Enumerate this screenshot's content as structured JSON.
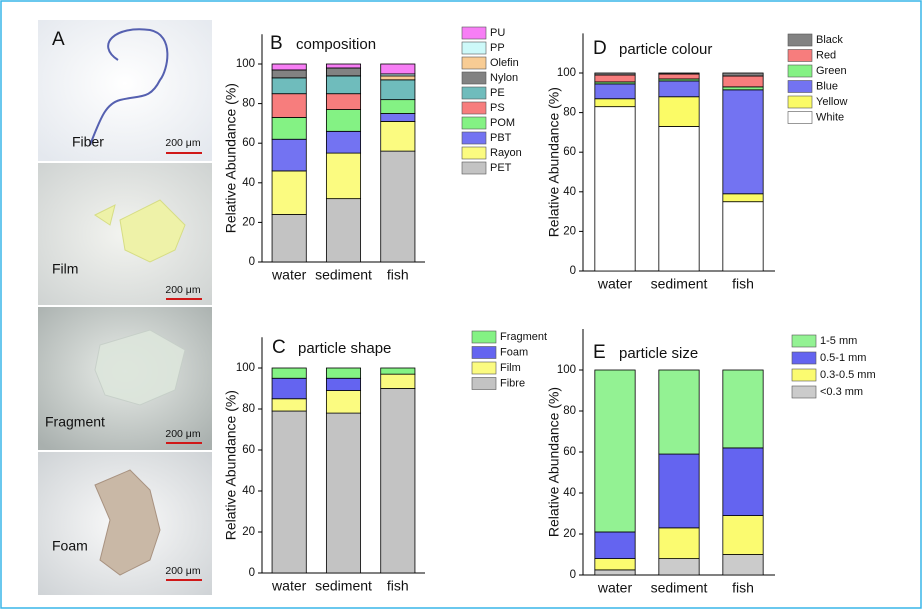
{
  "figure_label": "A",
  "photos": [
    {
      "label": "Fiber",
      "scale": "200 μm"
    },
    {
      "label": "Film",
      "scale": "200 μm"
    },
    {
      "label": "Fragment",
      "scale": "200 μm"
    },
    {
      "label": "Foam",
      "scale": "200 μm"
    }
  ],
  "chart_data": [
    {
      "type": "bar",
      "stacked": true,
      "panel": "B",
      "title": "composition",
      "ylabel": "Relative Abundance (%)",
      "categories": [
        "water",
        "sediment",
        "fish"
      ],
      "ylim": [
        0,
        115
      ],
      "yticks": [
        0,
        20,
        40,
        60,
        80,
        100
      ],
      "series": [
        {
          "name": "PET",
          "color": "#c3c3c3",
          "values": [
            24,
            32,
            56
          ]
        },
        {
          "name": "Rayon",
          "color": "#fbfb80",
          "values": [
            22,
            23,
            15
          ]
        },
        {
          "name": "PBT",
          "color": "#7373f2",
          "values": [
            16,
            11,
            4
          ]
        },
        {
          "name": "POM",
          "color": "#84f284",
          "values": [
            11,
            11,
            7
          ]
        },
        {
          "name": "PS",
          "color": "#f77d7d",
          "values": [
            12,
            8,
            0
          ]
        },
        {
          "name": "PE",
          "color": "#6fbcbc",
          "values": [
            8,
            9,
            10
          ]
        },
        {
          "name": "Nylon",
          "color": "#828282",
          "values": [
            4,
            4,
            0
          ]
        },
        {
          "name": "Olefin",
          "color": "#f8cc94",
          "values": [
            0,
            0,
            2
          ]
        },
        {
          "name": "PP",
          "color": "#cdf9f9",
          "values": [
            0,
            0,
            1
          ]
        },
        {
          "name": "PU",
          "color": "#f77ef5",
          "values": [
            3,
            2,
            5
          ]
        }
      ]
    },
    {
      "type": "bar",
      "stacked": true,
      "panel": "C",
      "title": "particle shape",
      "ylabel": "Relative Abundance (%)",
      "categories": [
        "water",
        "sediment",
        "fish"
      ],
      "ylim": [
        0,
        115
      ],
      "yticks": [
        0,
        20,
        40,
        60,
        80,
        100
      ],
      "series": [
        {
          "name": "Fibre",
          "color": "#c3c3c3",
          "values": [
            79,
            78,
            90
          ]
        },
        {
          "name": "Film",
          "color": "#fbfb80",
          "values": [
            6,
            11,
            7
          ]
        },
        {
          "name": "Foam",
          "color": "#6464f0",
          "values": [
            10,
            6,
            0
          ]
        },
        {
          "name": "Fragment",
          "color": "#84f284",
          "values": [
            5,
            5,
            3
          ]
        }
      ]
    },
    {
      "type": "bar",
      "stacked": true,
      "panel": "D",
      "title": "particle colour",
      "ylabel": "Relative Abundance (%)",
      "categories": [
        "water",
        "sediment",
        "fish"
      ],
      "ylim": [
        0,
        120
      ],
      "yticks": [
        0,
        20,
        40,
        60,
        80,
        100
      ],
      "series": [
        {
          "name": "White",
          "color": "#ffffff",
          "values": [
            83,
            73,
            35
          ]
        },
        {
          "name": "Yellow",
          "color": "#fbfb66",
          "values": [
            4,
            15,
            4
          ]
        },
        {
          "name": "Blue",
          "color": "#7373f2",
          "values": [
            7.5,
            8,
            52.5
          ]
        },
        {
          "name": "Green",
          "color": "#84f284",
          "values": [
            1,
            1,
            1.5
          ]
        },
        {
          "name": "Red",
          "color": "#f77d7d",
          "values": [
            3.5,
            2.5,
            5.5
          ]
        },
        {
          "name": "Black",
          "color": "#828282",
          "values": [
            1,
            0.5,
            1.5
          ]
        }
      ]
    },
    {
      "type": "bar",
      "stacked": true,
      "panel": "E",
      "title": "particle size",
      "ylabel": "Relative Abundance (%)",
      "categories": [
        "water",
        "sediment",
        "fish"
      ],
      "ylim": [
        0,
        120
      ],
      "yticks": [
        0,
        20,
        40,
        60,
        80,
        100
      ],
      "series": [
        {
          "name": "<0.3 mm",
          "color": "#cbcbcb",
          "values": [
            2.5,
            8,
            10
          ]
        },
        {
          "name": "0.3-0.5 mm",
          "color": "#fbfb70",
          "values": [
            5.5,
            15,
            19
          ]
        },
        {
          "name": "0.5-1 mm",
          "color": "#6464f0",
          "values": [
            13,
            36,
            33
          ]
        },
        {
          "name": "1-5 mm",
          "color": "#93f293",
          "values": [
            79,
            41,
            38
          ]
        }
      ]
    }
  ]
}
